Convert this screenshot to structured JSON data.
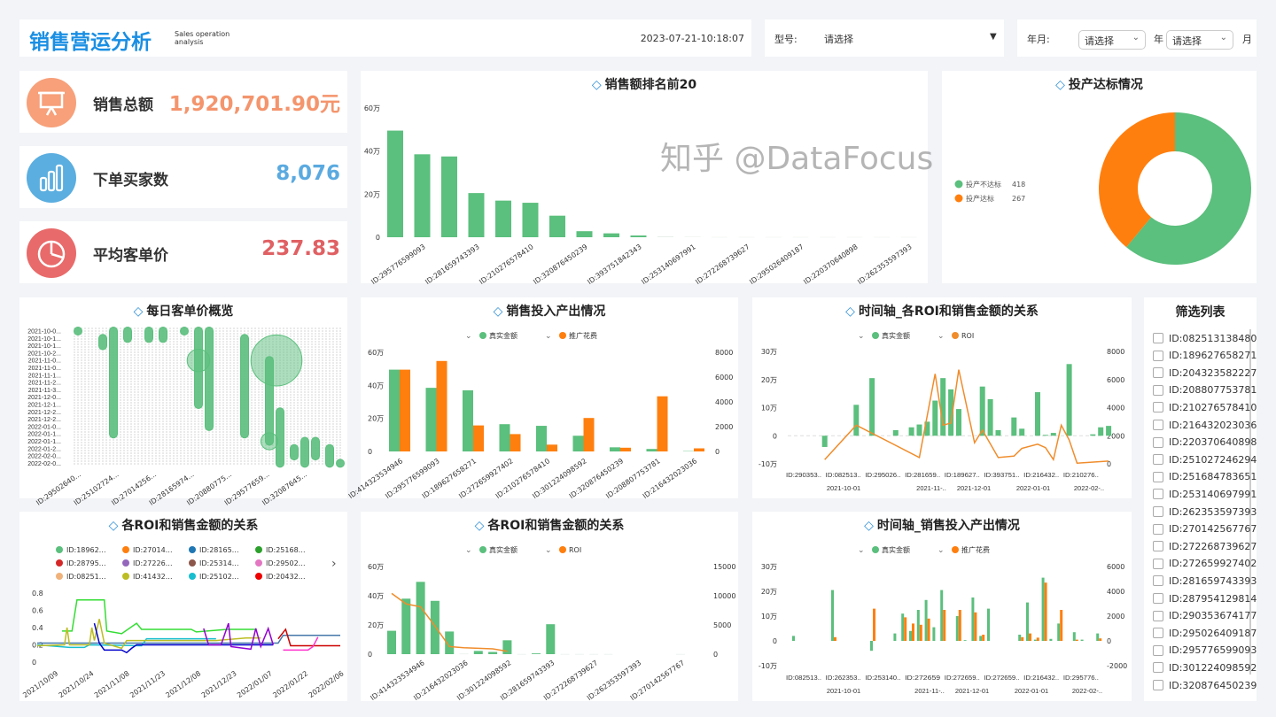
{
  "header": {
    "title": "销售营运分析",
    "subtitle_line1": "Sales operation",
    "subtitle_line2": "analysis",
    "datetime": "2023-07-21-10:18:07"
  },
  "filter_model": {
    "label": "型号:",
    "value": "请选择",
    "arrow": "▼"
  },
  "filter_date": {
    "label": "年月:",
    "year_value": "请选择",
    "year_unit": "年",
    "month_value": "请选择",
    "month_unit": "月"
  },
  "colors": {
    "accent": "#1a8fe3",
    "green": "#5bbf7d",
    "orange": "#ff7f0e",
    "roi_line": "#f08c2b"
  },
  "kpis": [
    {
      "label": "销售总额",
      "value": "1,920,701.90元",
      "icon": "presentation-board-icon",
      "icon_color": "#f7a07a",
      "value_color": "#f4956d"
    },
    {
      "label": "下单买家数",
      "value": "8,076",
      "icon": "bar-chart-icon",
      "icon_color": "#5aaee0",
      "value_color": "#5aaae0"
    },
    {
      "label": "平均客单价",
      "value": "237.83",
      "icon": "pie-chart-icon",
      "icon_color": "#e96a6a",
      "value_color": "#e06063"
    }
  ],
  "watermark": "知乎 @DataFocus",
  "chart_data": [
    {
      "id": "top20",
      "type": "bar",
      "title": "销售额排名前20",
      "ylim": [
        0,
        60
      ],
      "unit": "万",
      "y_ticks": [
        "0",
        "20万",
        "40万",
        "60万"
      ],
      "values": [
        49.5,
        38.5,
        37.5,
        20.5,
        17,
        16,
        10,
        2.8,
        1.8,
        0.8,
        0.4,
        0.2,
        0.1,
        0.1,
        0.1,
        0.1,
        0.1,
        0.1,
        0.1,
        0.1
      ],
      "tick_labels": [
        "ID:295776599093",
        "ID:281659743393",
        "ID:210276578410",
        "ID:320876450239",
        "ID:393751842343",
        "ID:253140697991",
        "ID:272268739627",
        "ID:295026409187",
        "ID:220370640898",
        "ID:262353597393"
      ]
    },
    {
      "id": "donut",
      "type": "pie",
      "title": "投产达标情况",
      "slices": [
        {
          "name": "投产不达标",
          "value": 418,
          "color": "#5bbf7d"
        },
        {
          "name": "投产达标",
          "value": 267,
          "color": "#ff7f0e"
        }
      ],
      "legend": "left"
    },
    {
      "id": "daily",
      "type": "scatter",
      "title": "每日客单价概览",
      "y_labels": [
        "2021-10-0...",
        "2021-10-1...",
        "2021-10-1...",
        "2021-10-2...",
        "2021-11-0...",
        "2021-11-0...",
        "2021-11-1...",
        "2021-11-2...",
        "2021-11-3...",
        "2021-12-0...",
        "2021-12-1...",
        "2021-12-2...",
        "2021-12-2...",
        "2022-01-0...",
        "2022-01-1...",
        "2022-01-1...",
        "2022-01-2...",
        "2022-02-0...",
        "2022-02-0..."
      ],
      "x_labels": [
        "ID:29502640...",
        "ID:25102724...",
        "ID:27014256...",
        "ID:28165974...",
        "ID:20880775...",
        "ID:29577659...",
        "ID:32087645..."
      ],
      "columns": [
        {
          "col": 1,
          "from": 0,
          "to": 0
        },
        {
          "col": 8,
          "from": 1,
          "to": 2
        },
        {
          "col": 11,
          "from": 0,
          "to": 14
        },
        {
          "col": 15,
          "from": 0,
          "to": 1
        },
        {
          "col": 21,
          "from": 0,
          "to": 1
        },
        {
          "col": 25,
          "from": 0,
          "to": 1
        },
        {
          "col": 31,
          "from": 0,
          "to": 0
        },
        {
          "col": 35,
          "from": 0,
          "to": 10
        },
        {
          "col": 38,
          "from": 0,
          "to": 13
        },
        {
          "col": 48,
          "from": 1,
          "to": 14
        },
        {
          "col": 55,
          "from": 4,
          "to": 15
        },
        {
          "col": 58,
          "from": 11,
          "to": 18
        },
        {
          "col": 62,
          "from": 16,
          "to": 17
        },
        {
          "col": 65,
          "from": 15,
          "to": 18
        },
        {
          "col": 68,
          "from": 15,
          "to": 17
        },
        {
          "col": 72,
          "from": 16,
          "to": 18
        },
        {
          "col": 75,
          "from": 18,
          "to": 18
        }
      ],
      "big_bubbles": [
        {
          "col": 57,
          "row": 4,
          "size": 9
        },
        {
          "col": 35,
          "row": 4,
          "size": 4
        },
        {
          "col": 55,
          "row": 15,
          "size": 3
        }
      ]
    },
    {
      "id": "sales_io",
      "type": "bar",
      "title": "销售投入产出情况",
      "legend": [
        {
          "name": "真实金额",
          "color": "#5bbf7d"
        },
        {
          "name": "推广花费",
          "color": "#ff7f0e"
        }
      ],
      "y_ticks": [
        "0",
        "20万",
        "40万",
        "60万"
      ],
      "ylim": [
        0,
        60
      ],
      "y2_ticks": [
        "0",
        "2000",
        "4000",
        "6000",
        "8000"
      ],
      "y2lim": [
        0,
        8000
      ],
      "categories": [
        "ID:414323534946",
        "ID:295776599093",
        "ID:189627658271",
        "ID:272659927402",
        "ID:210276578410",
        "ID:301224098592",
        "ID:320876450239",
        "ID:208807753781",
        "ID:216432023036"
      ],
      "series": [
        {
          "name": "真实金额",
          "axis": "left",
          "values": [
            49.5,
            38.5,
            37,
            16.5,
            15.5,
            9.5,
            2.5,
            1.5,
            0.2
          ]
        },
        {
          "name": "推广花费",
          "axis": "right",
          "values": [
            6600,
            7300,
            2100,
            1400,
            550,
            2700,
            300,
            4450,
            250
          ]
        }
      ]
    },
    {
      "id": "time_roi",
      "type": "bar+line",
      "title": "时间轴_各ROI和销售金额的关系",
      "legend": [
        {
          "name": "真实金额",
          "color": "#5bbf7d"
        },
        {
          "name": "ROI",
          "color": "#f08c2b"
        }
      ],
      "y_ticks": [
        "-10万",
        "0",
        "10万",
        "20万",
        "30万"
      ],
      "ylim": [
        -10,
        30
      ],
      "y2_ticks": [
        "0",
        "2000",
        "4000",
        "6000",
        "8000"
      ],
      "y2lim": [
        0,
        8000
      ],
      "x_labels": [
        "ID:290353..",
        "ID:082513..",
        "ID:295026..",
        "ID:281659..",
        "ID:189627..",
        "ID:393751..",
        "ID:216432..",
        "ID:210276.."
      ],
      "date_labels": [
        "2021-10-01",
        "2021-11-..",
        "2021-12-01",
        "2022-01-01",
        "2022-02-.."
      ],
      "bars": [
        0,
        0,
        0,
        -4,
        0,
        0,
        0,
        11,
        0,
        20.5,
        0,
        0,
        2,
        0,
        3,
        4,
        5,
        12.5,
        20.5,
        16.5,
        9.5,
        0,
        0,
        17.5,
        13,
        2,
        0,
        6.5,
        2.5,
        0,
        15.5,
        0.3,
        1,
        0,
        25.5,
        0,
        0,
        0.5,
        3,
        3.5
      ],
      "line": [
        [
          3,
          300
        ],
        [
          7,
          2750
        ],
        [
          15,
          450
        ],
        [
          17,
          6400
        ],
        [
          18,
          2750
        ],
        [
          19,
          2900
        ],
        [
          20,
          6700
        ],
        [
          22,
          1500
        ],
        [
          23,
          2400
        ],
        [
          25,
          450
        ],
        [
          27,
          550
        ],
        [
          28,
          1100
        ],
        [
          30,
          1400
        ],
        [
          31,
          1150
        ],
        [
          32,
          300
        ],
        [
          33,
          2750
        ],
        [
          34,
          1700
        ],
        [
          35,
          50
        ],
        [
          39,
          200
        ]
      ]
    },
    {
      "id": "roi_lines",
      "type": "line",
      "title": "各ROI和销售金额的关系",
      "legend": [
        {
          "name": "ID:18962…",
          "color": "#5bbf7d"
        },
        {
          "name": "ID:27014…",
          "color": "#ff7f0e"
        },
        {
          "name": "ID:28165…",
          "color": "#1f77b4"
        },
        {
          "name": "ID:25168…",
          "color": "#2ca02c"
        },
        {
          "name": "ID:28795…",
          "color": "#d62728"
        },
        {
          "name": "ID:27226…",
          "color": "#9467bd"
        },
        {
          "name": "ID:25314…",
          "color": "#8c564b"
        },
        {
          "name": "ID:29502…",
          "color": "#e377c2"
        },
        {
          "name": "ID:08251…",
          "color": "#f0b27a"
        },
        {
          "name": "ID:41432…",
          "color": "#bcbd22"
        },
        {
          "name": "ID:25102…",
          "color": "#17becf"
        },
        {
          "name": "ID:20432…",
          "color": "#ee0000"
        }
      ],
      "y_ticks": [
        "0",
        "0.2",
        "0.4",
        "0.6",
        "0.8"
      ],
      "ylim": [
        0,
        0.8
      ],
      "x_labels": [
        "2021/10/09",
        "2021/10/24",
        "2021/11/08",
        "2021/11/23",
        "2021/12/08",
        "2021/12/23",
        "2022/01/07",
        "2022/01/22",
        "2022/02/06"
      ],
      "xlim": [
        "2021-10-09",
        "2022-02-08"
      ],
      "series": [
        {
          "color": "#4477aa",
          "points": [
            [
              "2021-10-09",
              0.22
            ],
            [
              "2022-01-14",
              0.22
            ],
            [
              "2022-01-16",
              0.31
            ],
            [
              "2022-02-08",
              0.31
            ]
          ]
        },
        {
          "color": "#17becf",
          "points": [
            [
              "2021-10-09",
              0.2
            ],
            [
              "2021-10-22",
              0.17
            ],
            [
              "2021-10-28",
              0.17
            ],
            [
              "2021-10-30",
              0.2
            ],
            [
              "2021-11-20",
              0.19
            ],
            [
              "2021-11-22",
              0.27
            ],
            [
              "2021-12-20",
              0.27
            ]
          ]
        },
        {
          "color": "#33dd33",
          "points": [
            [
              "2021-10-19",
              0.36
            ],
            [
              "2021-10-23",
              0.36
            ],
            [
              "2021-10-25",
              0.72
            ],
            [
              "2021-11-05",
              0.72
            ],
            [
              "2021-11-06",
              0.36
            ],
            [
              "2021-11-12",
              0.33
            ],
            [
              "2021-11-18",
              0.45
            ],
            [
              "2021-11-20",
              0.38
            ],
            [
              "2021-12-10",
              0.38
            ],
            [
              "2021-12-12",
              0.35
            ],
            [
              "2021-12-25",
              0.38
            ],
            [
              "2022-01-05",
              0.38
            ]
          ]
        },
        {
          "color": "#bcbd22",
          "points": [
            [
              "2021-10-09",
              0.19
            ],
            [
              "2021-10-20",
              0.2
            ],
            [
              "2021-10-21",
              0.4
            ],
            [
              "2021-10-22",
              0.2
            ],
            [
              "2021-10-30",
              0.2
            ],
            [
              "2021-10-31",
              0.4
            ],
            [
              "2021-11-01",
              0.25
            ],
            [
              "2021-11-03",
              0.5
            ],
            [
              "2021-11-05",
              0.22
            ],
            [
              "2021-11-12",
              0.16
            ],
            [
              "2021-11-14",
              0.25
            ],
            [
              "2021-12-20",
              0.25
            ],
            [
              "2022-01-01",
              0.28
            ],
            [
              "2022-01-07",
              0.28
            ]
          ]
        },
        {
          "color": "#0000cc",
          "points": [
            [
              "2021-11-01",
              0.45
            ],
            [
              "2021-11-03",
              0.22
            ],
            [
              "2021-11-05",
              0.14
            ],
            [
              "2021-11-12",
              0.14
            ],
            [
              "2021-11-14",
              0.11
            ],
            [
              "2021-11-16",
              0.16
            ],
            [
              "2021-11-18",
              0.2
            ],
            [
              "2022-01-12",
              0.2
            ]
          ]
        },
        {
          "color": "#9400d3",
          "points": [
            [
              "2021-12-15",
              0.39
            ],
            [
              "2021-12-17",
              0.2
            ],
            [
              "2021-12-22",
              0.2
            ],
            [
              "2021-12-25",
              0.45
            ],
            [
              "2021-12-26",
              0.18
            ],
            [
              "2022-01-03",
              0.15
            ],
            [
              "2022-01-05",
              0.39
            ],
            [
              "2022-01-07",
              0.18
            ],
            [
              "2022-01-10",
              0.39
            ],
            [
              "2022-01-12",
              0.2
            ]
          ]
        },
        {
          "color": "#cc0000",
          "points": [
            [
              "2022-01-14",
              0.27
            ],
            [
              "2022-01-17",
              0.38
            ],
            [
              "2022-01-19",
              0.19
            ],
            [
              "2022-02-08",
              0.19
            ]
          ]
        },
        {
          "color": "#ff33cc",
          "points": [
            [
              "2022-01-16",
              0.14
            ],
            [
              "2022-01-26",
              0.14
            ],
            [
              "2022-01-28",
              0.18
            ],
            [
              "2022-01-30",
              0.29
            ]
          ]
        }
      ]
    },
    {
      "id": "roi_sales",
      "type": "bar+line",
      "title": "各ROI和销售金额的关系",
      "legend": [
        {
          "name": "真实金额",
          "color": "#5bbf7d"
        },
        {
          "name": "ROI",
          "color": "#ff7f0e"
        }
      ],
      "y_ticks": [
        "0",
        "20万",
        "40万",
        "60万"
      ],
      "ylim": [
        0,
        60
      ],
      "y2_ticks": [
        "0",
        "5000",
        "10000",
        "15000"
      ],
      "y2lim": [
        0,
        15000
      ],
      "bars": [
        16,
        38,
        49.5,
        36.5,
        15.5,
        0.3,
        2.2,
        1.5,
        9.5,
        0.1,
        0.5,
        20.5,
        0.1,
        0.1,
        0.1,
        0.1,
        0,
        0,
        0,
        0,
        0.1
      ],
      "line": [
        10400,
        8600,
        8100,
        4800,
        1300,
        1100,
        1000,
        900,
        500
      ],
      "x_labels": [
        "ID:414323534946",
        "ID:216432023036",
        "ID:301224098592",
        "ID:281659743393",
        "ID:272268739627",
        "ID:262353597393",
        "ID:270142567767"
      ]
    },
    {
      "id": "time_io",
      "type": "bar",
      "title": "时间轴_销售投入产出情况",
      "legend": [
        {
          "name": "真实金额",
          "color": "#5bbf7d"
        },
        {
          "name": "推广花费",
          "color": "#ff7f0e"
        }
      ],
      "y_ticks": [
        "-10万",
        "0",
        "10万",
        "20万",
        "30万"
      ],
      "ylim": [
        -10,
        30
      ],
      "y2_ticks": [
        "-2000",
        "0",
        "2000",
        "4000",
        "6000"
      ],
      "y2lim": [
        -2000,
        6000
      ],
      "x_labels": [
        "ID:082513..",
        "ID:262353..",
        "ID:253140..",
        "ID:272659",
        "ID:272659..",
        "ID:272659..",
        "ID:216432..",
        "ID:295776.."
      ],
      "date_labels": [
        "2021-10-01",
        "2021-11-..",
        "2021-12-01",
        "2022-01-01",
        "2022-02-.."
      ],
      "green": [
        2,
        0,
        0,
        0,
        0,
        20.5,
        0,
        0,
        0,
        0,
        -4,
        0,
        0,
        3,
        11,
        4,
        12.5,
        16.5,
        5.5,
        20.5,
        0,
        10,
        0.3,
        17.5,
        2,
        13,
        0,
        0,
        0,
        2.5,
        15.5,
        0.5,
        25.5,
        0.8,
        7,
        0,
        3.5,
        0.5,
        0,
        3
      ],
      "orange": [
        0,
        0,
        0,
        0,
        0,
        300,
        0,
        0,
        0,
        0,
        2600,
        0,
        0,
        0,
        1900,
        1400,
        1300,
        1800,
        0,
        2500,
        0,
        2500,
        0,
        2300,
        500,
        0,
        0,
        0,
        0,
        300,
        600,
        260,
        4700,
        0,
        2500,
        0,
        100,
        0,
        0,
        200
      ]
    }
  ],
  "filter_list": {
    "title": "筛选列表",
    "items": [
      "ID:082513138480",
      "ID:189627658271",
      "ID:204323582227",
      "ID:208807753781",
      "ID:210276578410",
      "ID:216432023036",
      "ID:220370640898",
      "ID:251027246294",
      "ID:251684783651",
      "ID:253140697991",
      "ID:262353597393",
      "ID:270142567767",
      "ID:272268739627",
      "ID:272659927402",
      "ID:281659743393",
      "ID:287954129814",
      "ID:290353674177",
      "ID:295026409187",
      "ID:295776599093",
      "ID:301224098592",
      "ID:320876450239"
    ]
  }
}
